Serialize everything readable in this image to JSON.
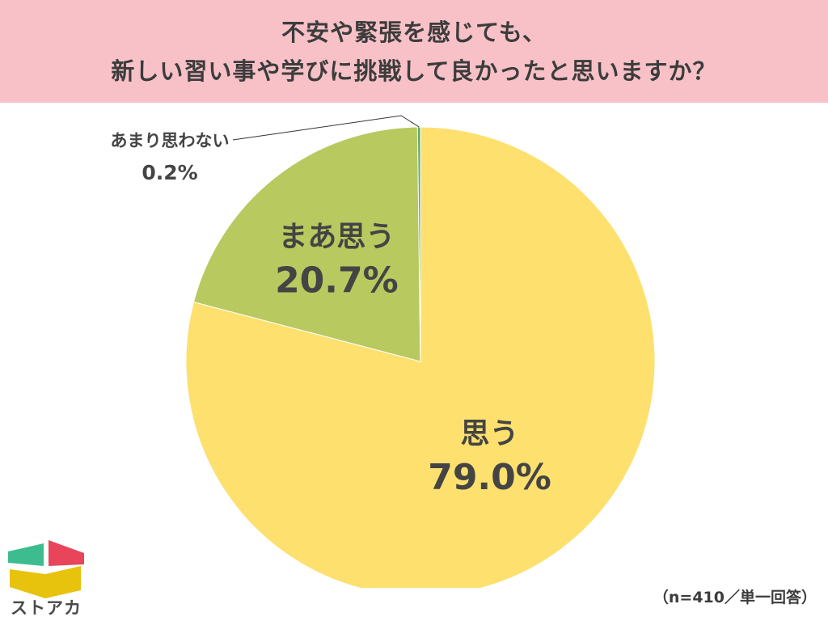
{
  "title": {
    "line1": "不安や緊張を感じても、",
    "line2": "新しい習い事や学びに挑戦して良かったと思いますか？"
  },
  "chart_data": {
    "type": "pie",
    "start": "12 o'clock, clockwise",
    "slices": [
      {
        "label": "思う",
        "value": 79.0,
        "value_label": "79.0%",
        "color": "#fde06e"
      },
      {
        "label": "まあ思う",
        "value": 20.7,
        "value_label": "20.7%",
        "color": "#b8c95f"
      },
      {
        "label": "あまり思わない",
        "value": 0.2,
        "value_label": "0.2%",
        "color": "#5ba86a"
      }
    ]
  },
  "note": "（n=410／単一回答）",
  "logo": {
    "text": "ストアカ",
    "colors": {
      "green": "#3dbd8f",
      "red": "#e8455a",
      "yellow": "#e8c30e"
    }
  }
}
